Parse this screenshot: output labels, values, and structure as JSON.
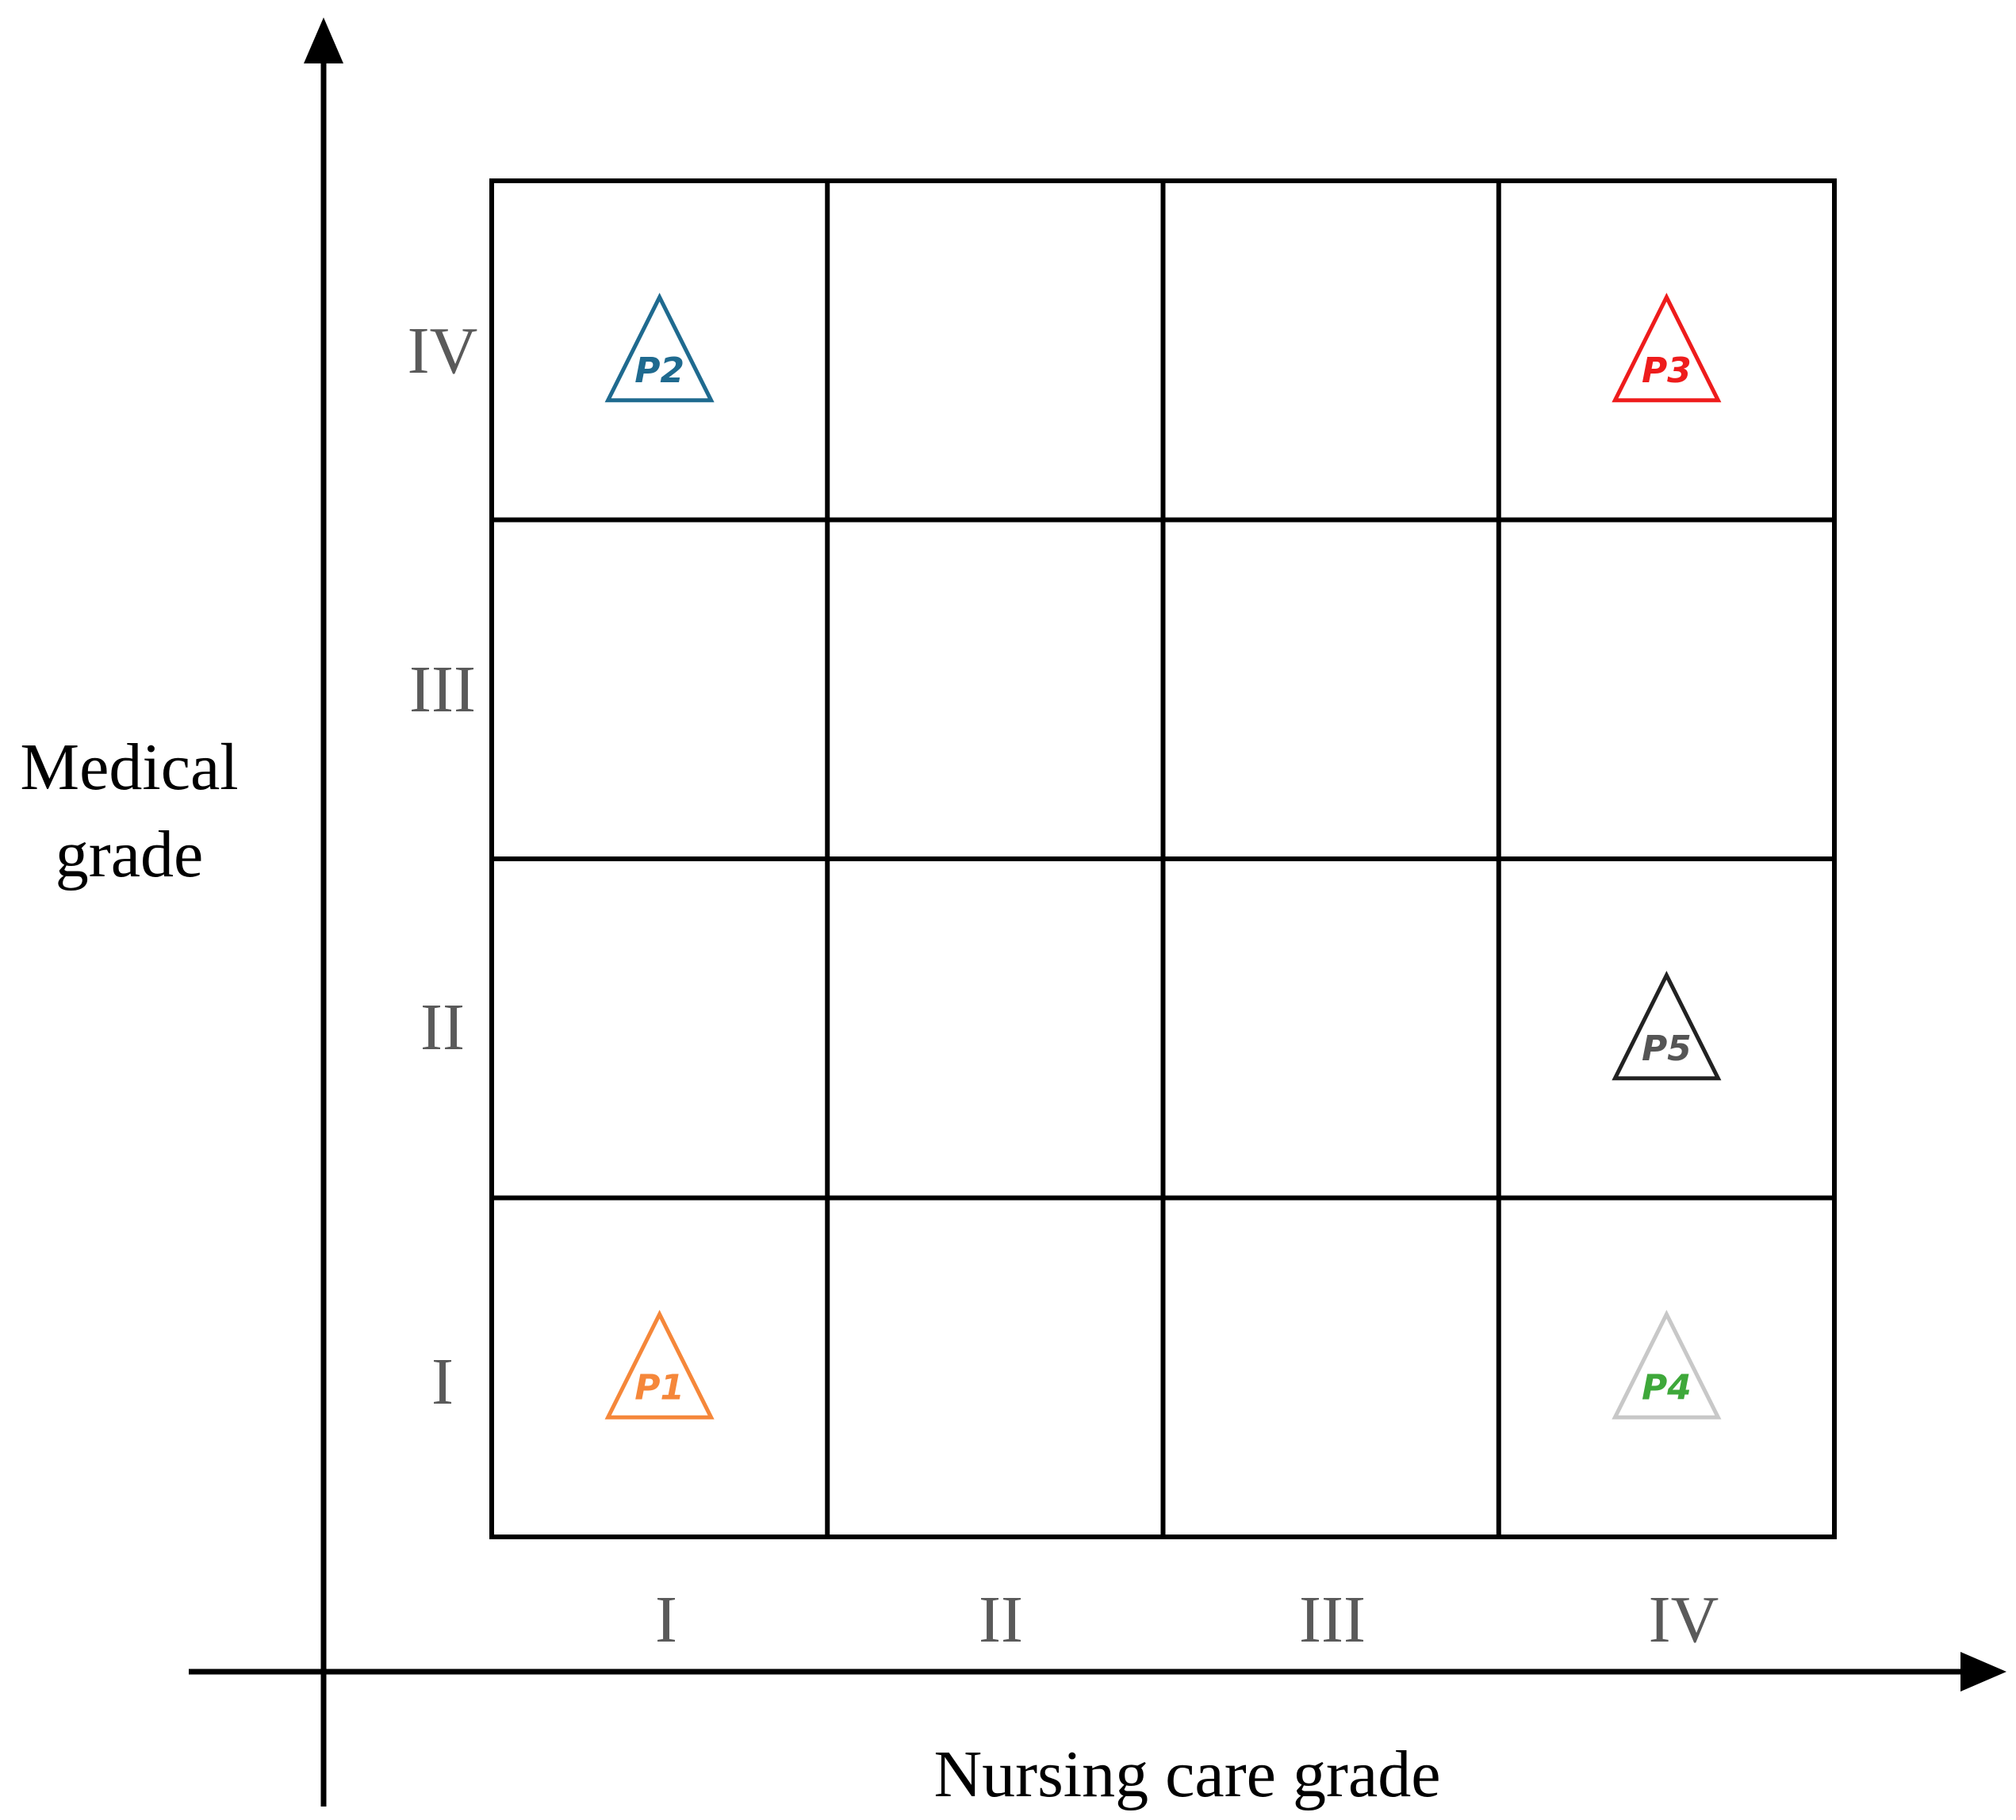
{
  "x_axis": {
    "title": "Nursing care grade",
    "ticks": [
      "I",
      "II",
      "III",
      "IV"
    ]
  },
  "y_axis": {
    "title_lines": [
      "Medical",
      "grade"
    ],
    "ticks": [
      "I",
      "II",
      "III",
      "IV"
    ]
  },
  "grid": {
    "columns": 4,
    "rows": 4
  },
  "colors": {
    "tick_label": "#5a5a5a",
    "line": "#000000"
  },
  "markers": [
    {
      "label": "P1",
      "nursing_grade": 1,
      "medical_grade": 1,
      "stroke": "#f5873a",
      "text": "#f5873a"
    },
    {
      "label": "P2",
      "nursing_grade": 1,
      "medical_grade": 4,
      "stroke": "#1f6a8f",
      "text": "#1f6a8f"
    },
    {
      "label": "P3",
      "nursing_grade": 4,
      "medical_grade": 4,
      "stroke": "#ee1c1c",
      "text": "#ee1c1c"
    },
    {
      "label": "P4",
      "nursing_grade": 4,
      "medical_grade": 1,
      "stroke": "#c8c8c8",
      "text": "#3ea83a"
    },
    {
      "label": "P5",
      "nursing_grade": 4,
      "medical_grade": 2,
      "stroke": "#222222",
      "text": "#555555"
    }
  ]
}
